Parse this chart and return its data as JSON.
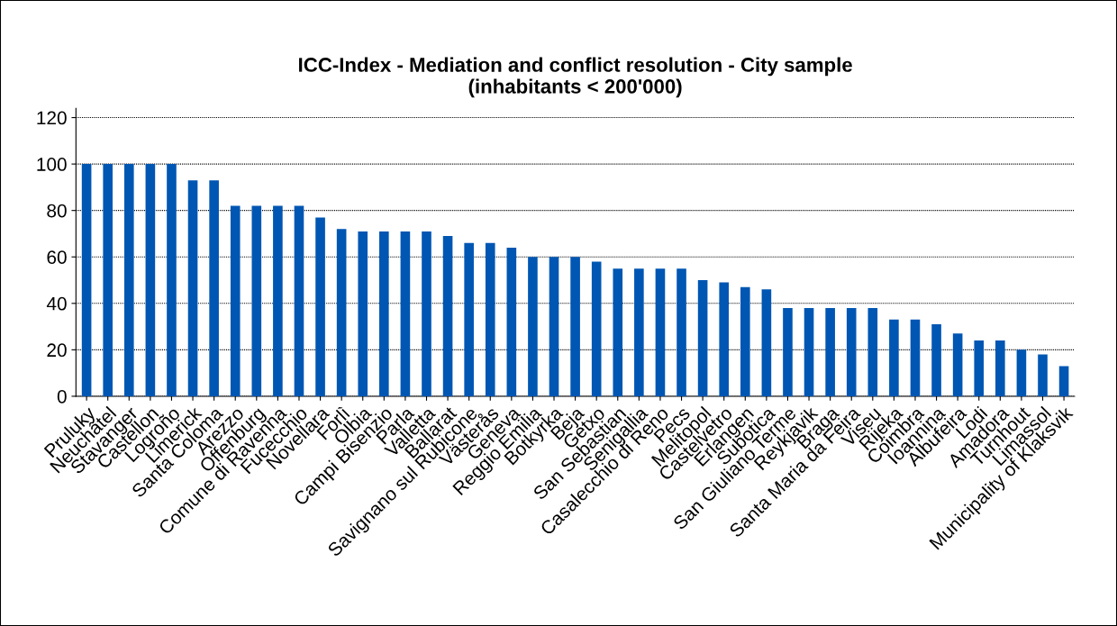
{
  "chart_data": {
    "type": "bar",
    "title": "ICC-Index - Mediation and conflict resolution - City sample\n(inhabitants < 200'000)",
    "categories": [
      "Pruluky",
      "Neuchâtel",
      "Stavanger",
      "Castellon",
      "Logroño",
      "Limerick",
      "Santa Coloma",
      "Arezzo",
      "Offenburg",
      "Comune di Ravenna",
      "Fucecchio",
      "Novellara",
      "Forlì",
      "Olbia",
      "Campi Bisenzio",
      "Parla",
      "Valletta",
      "Ballarat",
      "Savignano sul Rubicone",
      "Västerås",
      "Geneva",
      "Reggio Emilia",
      "Botkyrka",
      "Beja",
      "Getxo",
      "San Sebastian",
      "Senigallia",
      "Casalecchio di Reno",
      "Pecs",
      "Melitopol",
      "Castelvetro",
      "Erlangen",
      "Subotica",
      "San Giuliano Terme",
      "Reykjavik",
      "Braga",
      "Santa Maria da Feira",
      "Viseu",
      "Rijeka",
      "Coimbra",
      "Ioannina",
      "Albufeira",
      "Lodi",
      "Amadora",
      "Turnhout",
      "Limassol",
      "Municipality of Klaksvik"
    ],
    "values": [
      100,
      100,
      100,
      100,
      100,
      93,
      93,
      82,
      82,
      82,
      82,
      77,
      72,
      71,
      71,
      71,
      71,
      69,
      66,
      66,
      64,
      60,
      60,
      60,
      58,
      55,
      55,
      55,
      55,
      50,
      49,
      47,
      46,
      38,
      38,
      38,
      38,
      38,
      33,
      33,
      31,
      27,
      24,
      24,
      20,
      18,
      13
    ],
    "color": "#0056b3",
    "ylim": [
      0,
      124
    ],
    "yticks": [
      0,
      20,
      40,
      60,
      80,
      100,
      120
    ],
    "grid": "y"
  }
}
